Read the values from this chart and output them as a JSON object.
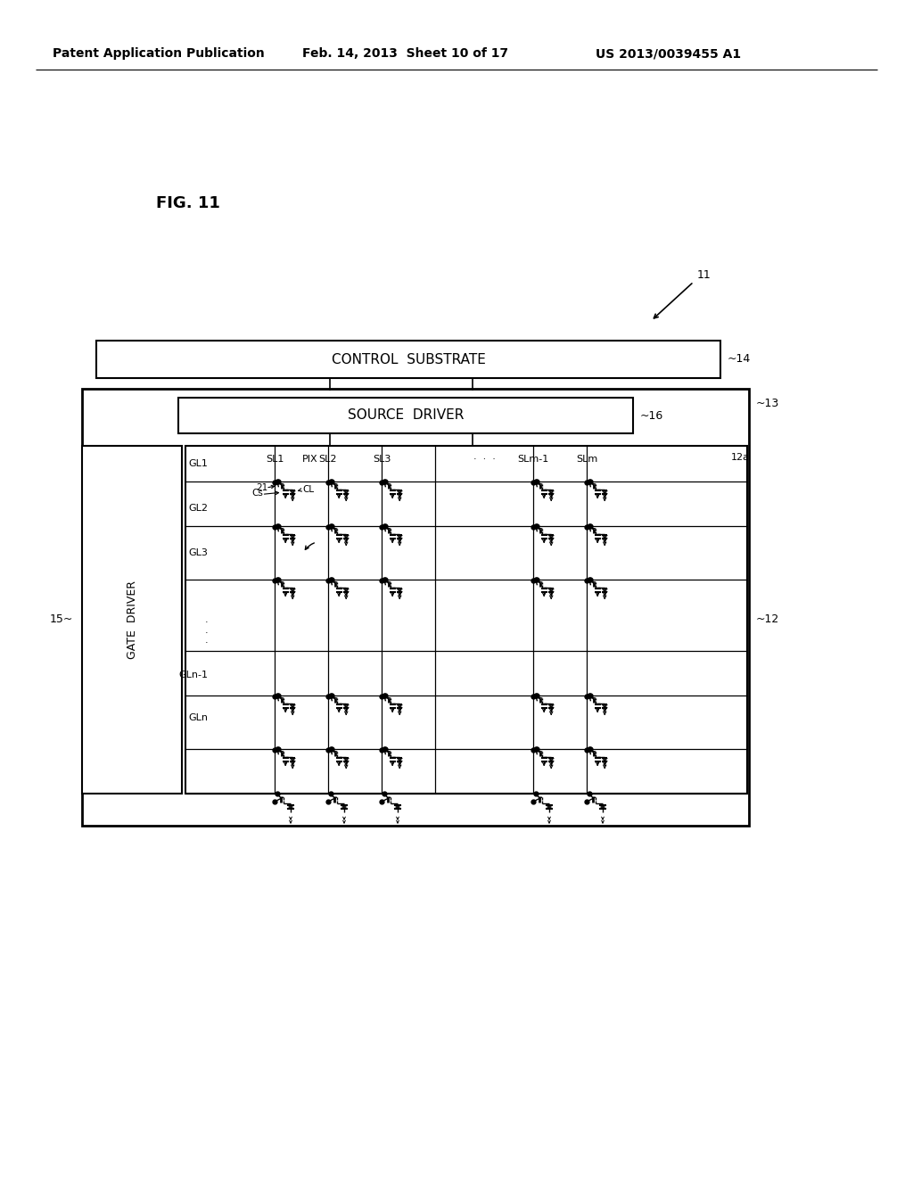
{
  "bg_color": "#ffffff",
  "header_left": "Patent Application Publication",
  "header_mid": "Feb. 14, 2013  Sheet 10 of 17",
  "header_right": "US 2013/0039455 A1",
  "fig_label": "FIG. 11",
  "ref_11": "11",
  "ref_12": "~12",
  "ref_12a": "12a",
  "ref_13": "~13",
  "ref_14": "~14",
  "ref_15": "15~",
  "ref_16": "~16",
  "ref_21": "21",
  "label_control_substrate": "CONTROL  SUBSTRATE",
  "label_source_driver": "SOURCE  DRIVER",
  "label_gate_driver": "GATE  DRIVER",
  "label_GL1": "GL1",
  "label_GL2": "GL2",
  "label_GL3": "GL3",
  "label_GLn1": "GLn-1",
  "label_GLn": "GLn",
  "label_SL1": "SL1",
  "label_PIX": "PIX",
  "label_SL2": "SL2",
  "label_SL3": "SL3",
  "label_dots": "·  ·  ·",
  "label_SLm1": "SLm-1",
  "label_SLm": "SLm",
  "label_CL": "CL",
  "label_Cs": "Cs"
}
